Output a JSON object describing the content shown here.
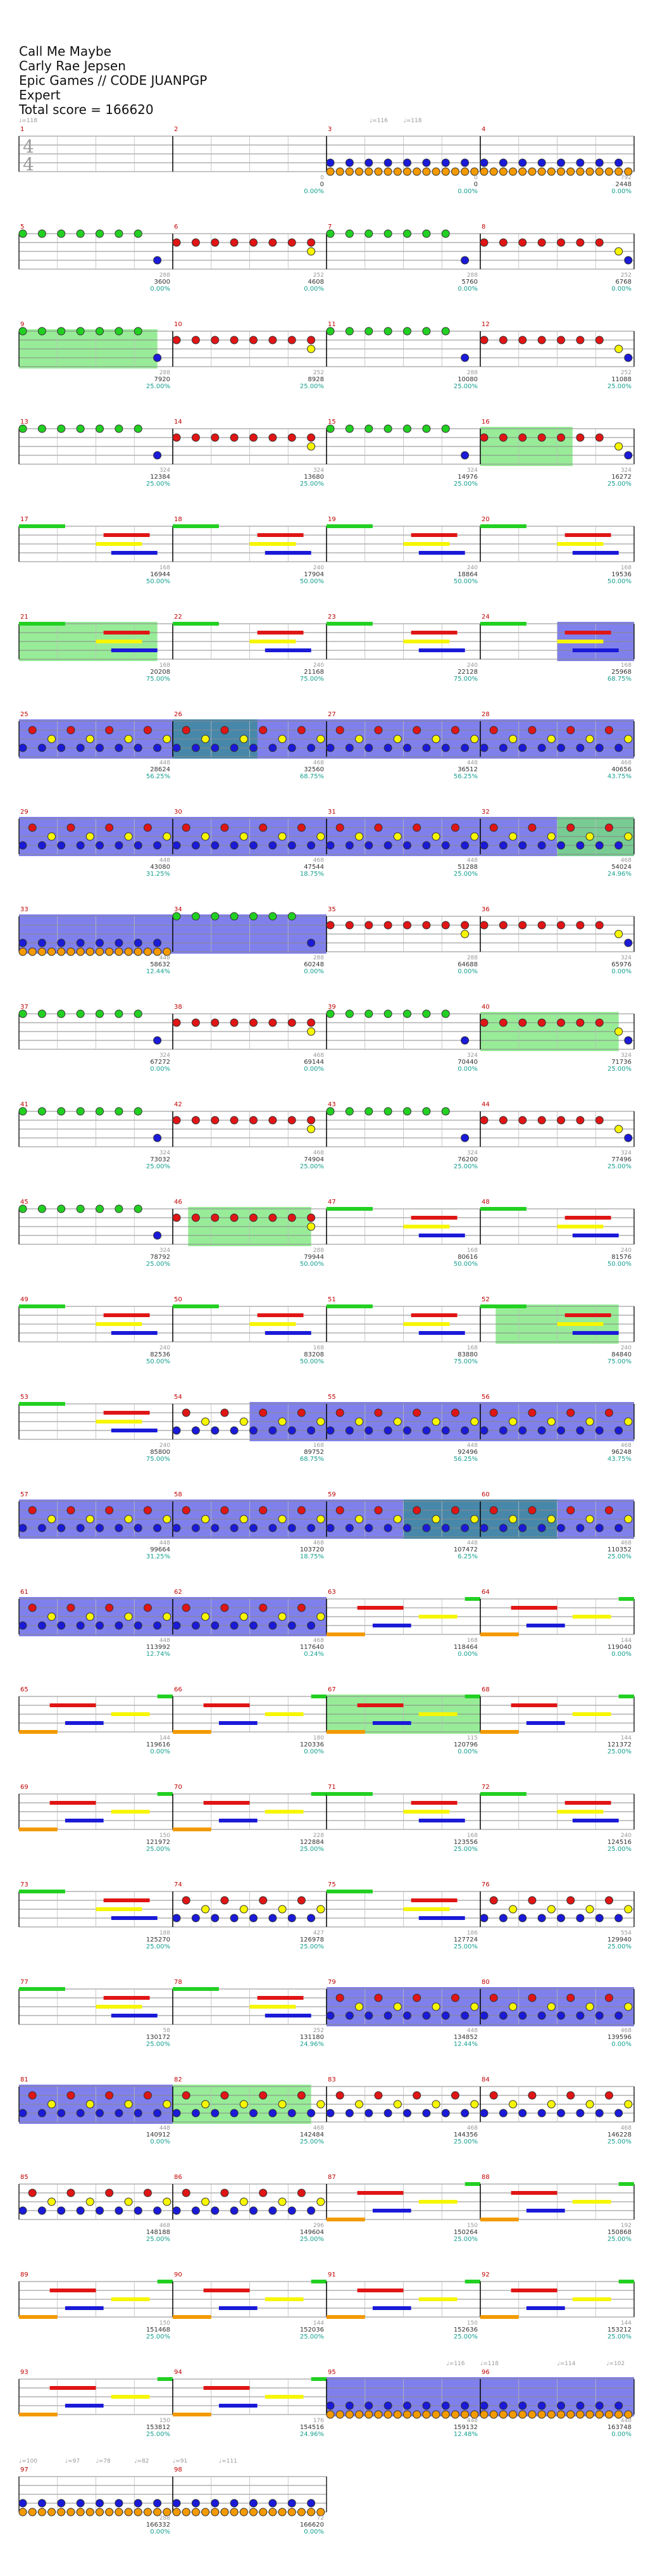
{
  "header": {
    "song": "Call Me Maybe",
    "artist": "Carly Rae Jepsen",
    "charter": "Epic Games // CODE JUANPGP",
    "difficulty": "Expert",
    "total_label": "Total score = 166620"
  },
  "time_signature": [
    "4",
    "4"
  ],
  "tempo_labels": [
    {
      "measure": 1,
      "pos": 0,
      "text": "♩=118"
    },
    {
      "measure": 3,
      "pos": 0.28,
      "text": "♩=116"
    },
    {
      "measure": 3,
      "pos": 0.5,
      "text": "♩=118"
    },
    {
      "measure": 95,
      "pos": 0.78,
      "text": "♩=116"
    },
    {
      "measure": 96,
      "pos": 0.0,
      "text": "♩=118"
    },
    {
      "measure": 96,
      "pos": 0.5,
      "text": "♩=114"
    },
    {
      "measure": 96,
      "pos": 0.82,
      "text": "♩=102"
    },
    {
      "measure": 97,
      "pos": 0.0,
      "text": "♩=100"
    },
    {
      "measure": 97,
      "pos": 0.3,
      "text": "♩=97"
    },
    {
      "measure": 97,
      "pos": 0.5,
      "text": "♩=78"
    },
    {
      "measure": 97,
      "pos": 0.75,
      "text": "♩=82"
    },
    {
      "measure": 98,
      "pos": 0.0,
      "text": "♩=91"
    },
    {
      "measure": 98,
      "pos": 0.3,
      "text": "♩=111"
    }
  ],
  "measures": [
    {
      "n": 1,
      "score": "",
      "pct": "",
      "left": ""
    },
    {
      "n": 2,
      "score": "0",
      "pct": "0.00%",
      "left": "0"
    },
    {
      "n": 3,
      "score": "0",
      "pct": "0.00%",
      "left": "0"
    },
    {
      "n": 4,
      "score": "2448",
      "pct": "0.00%",
      "left": "792"
    },
    {
      "n": 5,
      "score": "3600",
      "pct": "0.00%",
      "left": "288"
    },
    {
      "n": 6,
      "score": "4608",
      "pct": "0.00%",
      "left": "252"
    },
    {
      "n": 7,
      "score": "5760",
      "pct": "0.00%",
      "left": "288"
    },
    {
      "n": 8,
      "score": "6768",
      "pct": "0.00%",
      "left": "252"
    },
    {
      "n": 9,
      "score": "7920",
      "pct": "25.00%",
      "left": "288"
    },
    {
      "n": 10,
      "score": "8928",
      "pct": "25.00%",
      "left": "252"
    },
    {
      "n": 11,
      "score": "10080",
      "pct": "25.00%",
      "left": "288"
    },
    {
      "n": 12,
      "score": "11088",
      "pct": "25.00%",
      "left": "252"
    },
    {
      "n": 13,
      "score": "12384",
      "pct": "25.00%",
      "left": "324"
    },
    {
      "n": 14,
      "score": "13680",
      "pct": "25.00%",
      "left": "324"
    },
    {
      "n": 15,
      "score": "14976",
      "pct": "25.00%",
      "left": "324"
    },
    {
      "n": 16,
      "score": "16272",
      "pct": "25.00%",
      "left": "324"
    },
    {
      "n": 17,
      "score": "16944",
      "pct": "50.00%",
      "left": "168"
    },
    {
      "n": 18,
      "score": "17904",
      "pct": "50.00%",
      "left": "240"
    },
    {
      "n": 19,
      "score": "18864",
      "pct": "50.00%",
      "left": "240"
    },
    {
      "n": 20,
      "score": "19536",
      "pct": "50.00%",
      "left": "168"
    },
    {
      "n": 21,
      "score": "20208",
      "pct": "75.00%",
      "left": "168"
    },
    {
      "n": 22,
      "score": "21168",
      "pct": "75.00%",
      "left": "240"
    },
    {
      "n": 23,
      "score": "22128",
      "pct": "75.00%",
      "left": "240"
    },
    {
      "n": 24,
      "score": "25968",
      "pct": "68.75%",
      "left": "168"
    },
    {
      "n": 25,
      "score": "28624",
      "pct": "56.25%",
      "left": "448"
    },
    {
      "n": 26,
      "score": "32560",
      "pct": "68.75%",
      "left": "468"
    },
    {
      "n": 27,
      "score": "36512",
      "pct": "56.25%",
      "left": "448"
    },
    {
      "n": 28,
      "score": "40656",
      "pct": "43.75%",
      "left": "468"
    },
    {
      "n": 29,
      "score": "43080",
      "pct": "31.25%",
      "left": "448"
    },
    {
      "n": 30,
      "score": "47544",
      "pct": "18.75%",
      "left": "468"
    },
    {
      "n": 31,
      "score": "51288",
      "pct": "25.00%",
      "left": "448"
    },
    {
      "n": 32,
      "score": "54024",
      "pct": "24.96%",
      "left": "468"
    },
    {
      "n": 33,
      "score": "58632",
      "pct": "12.44%",
      "left": "448"
    },
    {
      "n": 34,
      "score": "60248",
      "pct": "0.00%",
      "left": "288"
    },
    {
      "n": 35,
      "score": "64688",
      "pct": "0.00%",
      "left": "288"
    },
    {
      "n": 36,
      "score": "65976",
      "pct": "0.00%",
      "left": "324"
    },
    {
      "n": 37,
      "score": "67272",
      "pct": "0.00%",
      "left": "324"
    },
    {
      "n": 38,
      "score": "69144",
      "pct": "0.00%",
      "left": "468"
    },
    {
      "n": 39,
      "score": "70440",
      "pct": "0.00%",
      "left": "324"
    },
    {
      "n": 40,
      "score": "71736",
      "pct": "25.00%",
      "left": "324"
    },
    {
      "n": 41,
      "score": "73032",
      "pct": "25.00%",
      "left": "324"
    },
    {
      "n": 42,
      "score": "74904",
      "pct": "25.00%",
      "left": "468"
    },
    {
      "n": 43,
      "score": "76200",
      "pct": "25.00%",
      "left": "324"
    },
    {
      "n": 44,
      "score": "77496",
      "pct": "25.00%",
      "left": "324"
    },
    {
      "n": 45,
      "score": "78792",
      "pct": "25.00%",
      "left": "324"
    },
    {
      "n": 46,
      "score": "79944",
      "pct": "50.00%",
      "left": "288"
    },
    {
      "n": 47,
      "score": "80616",
      "pct": "50.00%",
      "left": "168"
    },
    {
      "n": 48,
      "score": "81576",
      "pct": "50.00%",
      "left": "240"
    },
    {
      "n": 49,
      "score": "82536",
      "pct": "50.00%",
      "left": "240"
    },
    {
      "n": 50,
      "score": "83208",
      "pct": "50.00%",
      "left": "168"
    },
    {
      "n": 51,
      "score": "83880",
      "pct": "75.00%",
      "left": "168"
    },
    {
      "n": 52,
      "score": "84840",
      "pct": "75.00%",
      "left": "240"
    },
    {
      "n": 53,
      "score": "85800",
      "pct": "75.00%",
      "left": "240"
    },
    {
      "n": 54,
      "score": "89752",
      "pct": "68.75%",
      "left": "168"
    },
    {
      "n": 55,
      "score": "92496",
      "pct": "56.25%",
      "left": "448"
    },
    {
      "n": 56,
      "score": "96248",
      "pct": "43.75%",
      "left": "468"
    },
    {
      "n": 57,
      "score": "99664",
      "pct": "31.25%",
      "left": "448"
    },
    {
      "n": 58,
      "score": "103720",
      "pct": "18.75%",
      "left": "468"
    },
    {
      "n": 59,
      "score": "107472",
      "pct": "6.25%",
      "left": "448"
    },
    {
      "n": 60,
      "score": "110352",
      "pct": "25.00%",
      "left": "468"
    },
    {
      "n": 61,
      "score": "113992",
      "pct": "12.74%",
      "left": "448"
    },
    {
      "n": 62,
      "score": "117640",
      "pct": "0.24%",
      "left": "468"
    },
    {
      "n": 63,
      "score": "118464",
      "pct": "0.00%",
      "left": "168"
    },
    {
      "n": 64,
      "score": "119040",
      "pct": "0.00%",
      "left": "144"
    },
    {
      "n": 65,
      "score": "119616",
      "pct": "0.00%",
      "left": "144"
    },
    {
      "n": 66,
      "score": "120336",
      "pct": "0.00%",
      "left": "180"
    },
    {
      "n": 67,
      "score": "120796",
      "pct": "0.00%",
      "left": "115"
    },
    {
      "n": 68,
      "score": "121372",
      "pct": "25.00%",
      "left": "144"
    },
    {
      "n": 69,
      "score": "121972",
      "pct": "25.00%",
      "left": "150"
    },
    {
      "n": 70,
      "score": "122884",
      "pct": "25.00%",
      "left": "228"
    },
    {
      "n": 71,
      "score": "123556",
      "pct": "25.00%",
      "left": "168"
    },
    {
      "n": 72,
      "score": "124516",
      "pct": "25.00%",
      "left": "240"
    },
    {
      "n": 73,
      "score": "125270",
      "pct": "25.00%",
      "left": "188"
    },
    {
      "n": 74,
      "score": "126978",
      "pct": "25.00%",
      "left": "427"
    },
    {
      "n": 75,
      "score": "127724",
      "pct": "25.00%",
      "left": "186"
    },
    {
      "n": 76,
      "score": "129940",
      "pct": "25.00%",
      "left": "554"
    },
    {
      "n": 77,
      "score": "130172",
      "pct": "25.00%",
      "left": "58"
    },
    {
      "n": 78,
      "score": "131180",
      "pct": "24.96%",
      "left": "252"
    },
    {
      "n": 79,
      "score": "134852",
      "pct": "12.44%",
      "left": "448"
    },
    {
      "n": 80,
      "score": "139596",
      "pct": "0.00%",
      "left": "468"
    },
    {
      "n": 81,
      "score": "140912",
      "pct": "0.00%",
      "left": "448"
    },
    {
      "n": 82,
      "score": "142484",
      "pct": "25.00%",
      "left": "468"
    },
    {
      "n": 83,
      "score": "144356",
      "pct": "25.00%",
      "left": "468"
    },
    {
      "n": 84,
      "score": "146228",
      "pct": "25.00%",
      "left": "468"
    },
    {
      "n": 85,
      "score": "148188",
      "pct": "25.00%",
      "left": "468"
    },
    {
      "n": 86,
      "score": "149604",
      "pct": "25.00%",
      "left": "296"
    },
    {
      "n": 87,
      "score": "150264",
      "pct": "25.00%",
      "left": "150"
    },
    {
      "n": 88,
      "score": "150868",
      "pct": "25.00%",
      "left": "192"
    },
    {
      "n": 89,
      "score": "151468",
      "pct": "25.00%",
      "left": "150"
    },
    {
      "n": 90,
      "score": "152036",
      "pct": "25.00%",
      "left": "144"
    },
    {
      "n": 91,
      "score": "152636",
      "pct": "25.00%",
      "left": "150"
    },
    {
      "n": 92,
      "score": "153212",
      "pct": "25.00%",
      "left": "144"
    },
    {
      "n": 93,
      "score": "153812",
      "pct": "25.00%",
      "left": "150"
    },
    {
      "n": 94,
      "score": "154516",
      "pct": "24.96%",
      "left": "176"
    },
    {
      "n": 95,
      "score": "159132",
      "pct": "12.48%",
      "left": "448"
    },
    {
      "n": 96,
      "score": "163748",
      "pct": "0.00%",
      "left": "448"
    },
    {
      "n": 97,
      "score": "166332",
      "pct": "0.00%",
      "left": "288"
    },
    {
      "n": 98,
      "score": "166620",
      "pct": "0.00%",
      "left": "72"
    }
  ],
  "colors": {
    "green": "#22d022",
    "red": "#e01515",
    "yellow": "#f6f600",
    "blue": "#1a1ad8",
    "orange": "#f39a00",
    "starpower": "#76e676",
    "overdrive": "#5555e6",
    "both": "#3d8a9f",
    "score": "#16a090",
    "label": "#c00000",
    "muted": "#999999"
  },
  "patterns": {
    "m1": "",
    "m3": "B:0,.125,.25,.375,.5,.625,.75,.875;O:0,.0625,.125,.1875,.25,.3125,.375,.4375,.5,.5625,.625,.6875,.75,.8125,.875,.9375",
    "intro": "G:0,.125,.25,.375,.5,.625,.75;B:.875",
    "rise": "R:0,.125,.25,.375,.5,.625,.75,.875;Y:.875",
    "m8b": "R:0,.125,.25,.375,.5,.625,.75;Y:.875;B:.9375",
    "sus": "G:0-.3;Y:.5-.8;R:.55-.85;B:.6-.9",
    "dense": "B:0,.125,.25,.375,.5,.625,.75,.875;R:.0625,.3125,.5625,.8125;Y:.1875,.4375,.6875,.9375",
    "lines": "O:0-.25;B:.3-.55;Y:.6-.85;R:.2-.5;G:.9-1"
  },
  "measure_patterns": {
    "1": "m1",
    "2": "m1",
    "3": "m3",
    "4": "m3",
    "5": "intro",
    "6": "rise",
    "7": "intro",
    "8": "m8b",
    "9": "intro",
    "10": "rise",
    "11": "intro",
    "12": "m8b",
    "13": "intro",
    "14": "rise",
    "15": "intro",
    "16": "m8b",
    "17": "sus",
    "18": "sus",
    "19": "sus",
    "20": "sus",
    "21": "sus",
    "22": "sus",
    "23": "sus",
    "24": "sus",
    "25": "dense",
    "26": "dense",
    "27": "dense",
    "28": "dense",
    "29": "dense",
    "30": "dense",
    "31": "dense",
    "32": "dense",
    "33": "m3",
    "34": "intro",
    "35": "rise",
    "36": "m8b",
    "37": "intro",
    "38": "rise",
    "39": "intro",
    "40": "m8b",
    "41": "intro",
    "42": "rise",
    "43": "intro",
    "44": "m8b",
    "45": "intro",
    "46": "rise",
    "47": "sus",
    "48": "sus",
    "49": "sus",
    "50": "sus",
    "51": "sus",
    "52": "sus",
    "53": "sus",
    "54": "dense",
    "55": "dense",
    "56": "dense",
    "57": "dense",
    "58": "dense",
    "59": "dense",
    "60": "dense",
    "61": "dense",
    "62": "dense",
    "63": "lines",
    "64": "lines",
    "65": "lines",
    "66": "lines",
    "67": "lines",
    "68": "lines",
    "69": "lines",
    "70": "lines",
    "71": "sus",
    "72": "sus",
    "73": "sus",
    "74": "dense",
    "75": "sus",
    "76": "dense",
    "77": "sus",
    "78": "sus",
    "79": "dense",
    "80": "dense",
    "81": "dense",
    "82": "dense",
    "83": "dense",
    "84": "dense",
    "85": "dense",
    "86": "dense",
    "87": "lines",
    "88": "lines",
    "89": "lines",
    "90": "lines",
    "91": "lines",
    "92": "lines",
    "93": "lines",
    "94": "lines",
    "95": "m3",
    "96": "m3",
    "97": "m3",
    "98": "m3"
  },
  "highlights": [
    {
      "from": 9,
      "to": 9,
      "kind": "starpower",
      "a": 0,
      "b": 0.9
    },
    {
      "from": 16,
      "to": 16,
      "kind": "starpower",
      "a": 0,
      "b": 0.6
    },
    {
      "from": 21,
      "to": 21,
      "kind": "starpower",
      "a": 0,
      "b": 0.9
    },
    {
      "from": 24,
      "to": 24,
      "kind": "overdrive",
      "a": 0.5,
      "b": 1
    },
    {
      "from": 25,
      "to": 28,
      "kind": "overdrive",
      "a": 0,
      "b": 1
    },
    {
      "from": 26,
      "to": 26,
      "kind": "both",
      "a": 0,
      "b": 0.55
    },
    {
      "from": 29,
      "to": 32,
      "kind": "overdrive",
      "a": 0,
      "b": 1
    },
    {
      "from": 32,
      "to": 32,
      "kind": "starpower",
      "a": 0.5,
      "b": 1
    },
    {
      "from": 33,
      "to": 34,
      "kind": "overdrive",
      "a": 0,
      "b": 1
    },
    {
      "from": 40,
      "to": 40,
      "kind": "starpower",
      "a": 0,
      "b": 0.9
    },
    {
      "from": 46,
      "to": 46,
      "kind": "starpower",
      "a": 0.1,
      "b": 0.9
    },
    {
      "from": 52,
      "to": 52,
      "kind": "starpower",
      "a": 0.1,
      "b": 0.9
    },
    {
      "from": 54,
      "to": 56,
      "kind": "overdrive",
      "a": 0.5,
      "b": 1
    },
    {
      "from": 57,
      "to": 60,
      "kind": "overdrive",
      "a": 0,
      "b": 1
    },
    {
      "from": 59,
      "to": 60,
      "kind": "both",
      "a": 0.5,
      "b": 0.5
    },
    {
      "from": 61,
      "to": 62,
      "kind": "overdrive",
      "a": 0,
      "b": 1
    },
    {
      "from": 67,
      "to": 67,
      "kind": "starpower",
      "a": 0,
      "b": 1
    },
    {
      "from": 79,
      "to": 80,
      "kind": "overdrive",
      "a": 0,
      "b": 1
    },
    {
      "from": 81,
      "to": 81,
      "kind": "overdrive",
      "a": 0,
      "b": 1
    },
    {
      "from": 82,
      "to": 82,
      "kind": "starpower",
      "a": 0,
      "b": 0.9
    },
    {
      "from": 95,
      "to": 96,
      "kind": "overdrive",
      "a": 0,
      "b": 1
    }
  ]
}
